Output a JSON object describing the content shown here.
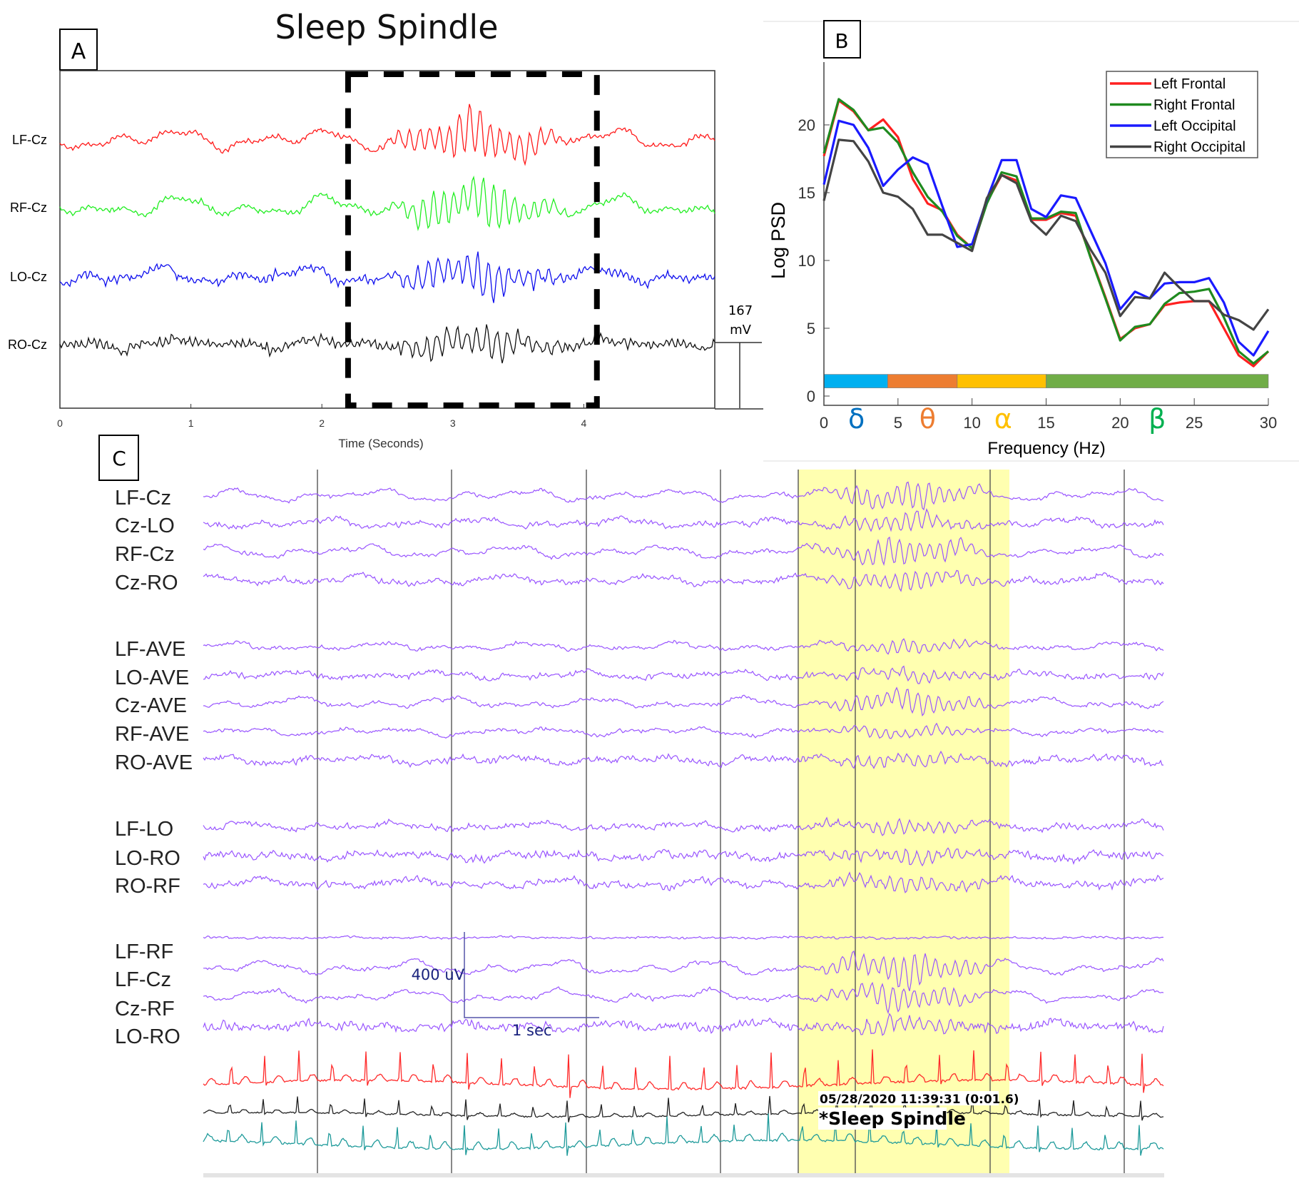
{
  "figure": {
    "title": "Sleep Spindle"
  },
  "panel_a": {
    "label": "A",
    "channels": [
      {
        "name": "LF-Cz",
        "color": "#ff1a1a"
      },
      {
        "name": "RF-Cz",
        "color": "#22ee22"
      },
      {
        "name": "LO-Cz",
        "color": "#1010ee"
      },
      {
        "name": "RO-Cz",
        "color": "#111111"
      }
    ],
    "x_ticks": [
      "0",
      "1",
      "2",
      "3",
      "4"
    ],
    "xlabel": "Time (Seconds)",
    "x_range_seconds": [
      0,
      5
    ],
    "highlight_seconds": [
      2.2,
      4.1
    ],
    "scale_value": "167",
    "scale_unit": "mV"
  },
  "chart_data": {
    "type": "line",
    "panel": "B",
    "xlabel": "Frequency (Hz)",
    "ylabel": "Log PSD",
    "xlim": [
      0,
      30
    ],
    "ylim": [
      0,
      23
    ],
    "x_ticks": [
      "0",
      "5",
      "10",
      "15",
      "20",
      "25",
      "30"
    ],
    "y_ticks": [
      "0",
      "5",
      "10",
      "15",
      "20"
    ],
    "legend_position": "top-right",
    "x": [
      0,
      1,
      2,
      3,
      4,
      5,
      6,
      7,
      8,
      9,
      10,
      11,
      12,
      13,
      14,
      15,
      16,
      17,
      18,
      19,
      20,
      21,
      22,
      23,
      24,
      25,
      26,
      27,
      28,
      29,
      30
    ],
    "series": [
      {
        "name": "Left Frontal",
        "color": "#ff2020",
        "values": [
          17.7,
          21.8,
          21,
          19.6,
          20.4,
          19.1,
          16,
          14.2,
          13.7,
          11.9,
          10.9,
          14.3,
          16.3,
          15.9,
          13,
          13,
          13.5,
          13.3,
          10.3,
          7.3,
          4.2,
          5,
          5.3,
          6.7,
          6.9,
          7,
          7,
          5,
          3,
          2.2,
          3.3
        ]
      },
      {
        "name": "Right Frontal",
        "color": "#1f8a1f",
        "values": [
          17.9,
          21.9,
          21.1,
          19.6,
          19.8,
          18.7,
          16.5,
          14.7,
          13.6,
          11.8,
          10.9,
          14.2,
          16.5,
          16.2,
          13.1,
          13.1,
          13.6,
          13.5,
          10.2,
          7.2,
          4.1,
          5.1,
          5.3,
          6.8,
          7.6,
          7.7,
          7.9,
          5.8,
          3.3,
          2.4,
          3.3
        ]
      },
      {
        "name": "Left Occipital",
        "color": "#1a1aff",
        "values": [
          15.6,
          20.3,
          20,
          18.3,
          15.5,
          16.7,
          17.6,
          17.1,
          14,
          11,
          11.2,
          14.5,
          17.4,
          17.4,
          13.8,
          13.2,
          14.8,
          14.6,
          12.2,
          9.8,
          6.4,
          7.7,
          7.2,
          8.3,
          8.4,
          8.4,
          8.7,
          6.9,
          4,
          3,
          4.8
        ]
      },
      {
        "name": "Right Occipital",
        "color": "#444444",
        "values": [
          14.4,
          18.9,
          18.8,
          17.3,
          15,
          14.7,
          13.8,
          11.9,
          11.9,
          11.3,
          10.7,
          14.6,
          16.3,
          15.7,
          12.9,
          11.9,
          13.3,
          12.9,
          10.8,
          9.1,
          5.9,
          7.3,
          7.2,
          9.1,
          8,
          7,
          7,
          6,
          5.6,
          4.9,
          6.4
        ]
      }
    ],
    "bands": [
      {
        "symbol": "δ",
        "from": 0,
        "to": 4.3,
        "center": 2.2,
        "bar_color": "#00b0f0",
        "text_color": "#0070c0"
      },
      {
        "symbol": "θ",
        "from": 4.3,
        "to": 9,
        "center": 7,
        "bar_color": "#ed7d31",
        "text_color": "#ed7d31"
      },
      {
        "symbol": "α",
        "from": 9,
        "to": 15,
        "center": 12.1,
        "bar_color": "#ffc000",
        "text_color": "#ffc000"
      },
      {
        "symbol": "β",
        "from": 15,
        "to": 30,
        "center": 22.5,
        "bar_color": "#70ad47",
        "text_color": "#00b050"
      }
    ]
  },
  "panel_b": {
    "label": "B"
  },
  "panel_c": {
    "label": "C",
    "trace_color": "#9955ff",
    "groups": [
      [
        "LF-Cz",
        "Cz-LO",
        "RF-Cz",
        "Cz-RO"
      ],
      [
        "LF-AVE",
        "LO-AVE",
        "Cz-AVE",
        "RF-AVE",
        "RO-AVE"
      ],
      [
        "LF-LO",
        "LO-RO",
        "RO-RF"
      ],
      [
        "LF-RF",
        "LF-Cz",
        "Cz-RF",
        "LO-RO"
      ]
    ],
    "ecg_colors": [
      "#ff2a2a",
      "#222222",
      "#1e9a9a"
    ],
    "scale_amplitude": "400 uV",
    "scale_time": "1 sec",
    "timestamp": "05/28/2020 11:39:31 (0:01.6)",
    "event_label": "*Sleep Spindle",
    "highlight_color": "#ffffb0"
  }
}
